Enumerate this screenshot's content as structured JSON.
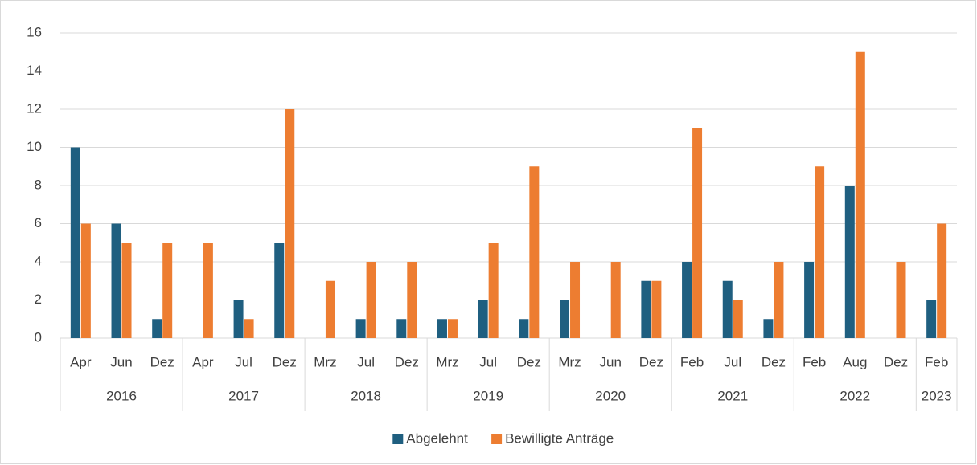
{
  "chart_data": {
    "type": "bar",
    "groups": [
      {
        "name": "2016",
        "categories": [
          "Apr",
          "Jun",
          "Dez"
        ]
      },
      {
        "name": "2017",
        "categories": [
          "Apr",
          "Jul",
          "Dez"
        ]
      },
      {
        "name": "2018",
        "categories": [
          "Mrz",
          "Jul",
          "Dez"
        ]
      },
      {
        "name": "2019",
        "categories": [
          "Mrz",
          "Jul",
          "Dez"
        ]
      },
      {
        "name": "2020",
        "categories": [
          "Mrz",
          "Jun",
          "Dez"
        ]
      },
      {
        "name": "2021",
        "categories": [
          "Feb",
          "Jul",
          "Dez"
        ]
      },
      {
        "name": "2022",
        "categories": [
          "Feb",
          "Aug",
          "Dez"
        ]
      },
      {
        "name": "2023",
        "categories": [
          "Feb"
        ]
      }
    ],
    "series": [
      {
        "name": "Abgelehnt",
        "color": "#1f5f80",
        "values": [
          10,
          6,
          1,
          0,
          2,
          5,
          0,
          1,
          1,
          1,
          2,
          1,
          2,
          0,
          3,
          4,
          3,
          1,
          4,
          8,
          0,
          2
        ]
      },
      {
        "name": "Bewilligte Anträge",
        "color": "#ed7d31",
        "values": [
          6,
          5,
          5,
          5,
          1,
          12,
          3,
          4,
          4,
          1,
          5,
          9,
          4,
          4,
          3,
          11,
          2,
          4,
          9,
          15,
          4,
          6
        ]
      }
    ],
    "ylim": [
      0,
      16
    ],
    "yticks": [
      0,
      2,
      4,
      6,
      8,
      10,
      12,
      14,
      16
    ],
    "grid": true,
    "legend": "bottom"
  }
}
